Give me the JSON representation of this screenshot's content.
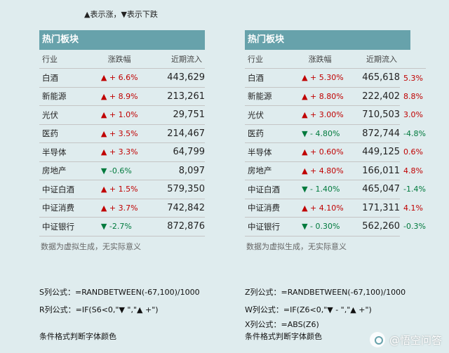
{
  "legend": "▲表示涨，▼表示下跌",
  "left": {
    "title": "热门板块",
    "headers": [
      "行业",
      "涨跌幅",
      "近期流入"
    ],
    "rows": [
      {
        "name": "白酒",
        "dir": "up",
        "arrow": "▲",
        "sign": "+",
        "pct": "6.6%",
        "inflow": "443,629"
      },
      {
        "name": "新能源",
        "dir": "up",
        "arrow": "▲",
        "sign": "+",
        "pct": "8.9%",
        "inflow": "213,261"
      },
      {
        "name": "光伏",
        "dir": "up",
        "arrow": "▲",
        "sign": "+",
        "pct": "1.0%",
        "inflow": "29,751"
      },
      {
        "name": "医药",
        "dir": "up",
        "arrow": "▲",
        "sign": "+",
        "pct": "3.5%",
        "inflow": "214,467"
      },
      {
        "name": "半导体",
        "dir": "up",
        "arrow": "▲",
        "sign": "+",
        "pct": "3.3%",
        "inflow": "64,799"
      },
      {
        "name": "房地产",
        "dir": "down",
        "arrow": "▼",
        "sign": "",
        "pct": "-0.6%",
        "inflow": "8,097"
      },
      {
        "name": "中证白酒",
        "dir": "up",
        "arrow": "▲",
        "sign": "+",
        "pct": "1.5%",
        "inflow": "579,350"
      },
      {
        "name": "中证消费",
        "dir": "up",
        "arrow": "▲",
        "sign": "+",
        "pct": "3.7%",
        "inflow": "742,842"
      },
      {
        "name": "中证银行",
        "dir": "down",
        "arrow": "▼",
        "sign": "",
        "pct": "-2.7%",
        "inflow": "872,876"
      }
    ],
    "note": "数据为虚拟生成，无实际意义"
  },
  "right": {
    "title": "热门板块",
    "headers": [
      "行业",
      "涨跌幅",
      "近期流入"
    ],
    "rows": [
      {
        "name": "白酒",
        "dir": "up",
        "arrow": "▲",
        "sign": "+",
        "pct": "5.30%",
        "inflow": "465,618",
        "raw": "5.3%"
      },
      {
        "name": "新能源",
        "dir": "up",
        "arrow": "▲",
        "sign": "+",
        "pct": "8.80%",
        "inflow": "222,402",
        "raw": "8.8%"
      },
      {
        "name": "光伏",
        "dir": "up",
        "arrow": "▲",
        "sign": "+",
        "pct": "3.00%",
        "inflow": "710,503",
        "raw": "3.0%"
      },
      {
        "name": "医药",
        "dir": "down",
        "arrow": "▼",
        "sign": "-",
        "pct": "4.80%",
        "inflow": "872,744",
        "raw": "-4.8%"
      },
      {
        "name": "半导体",
        "dir": "up",
        "arrow": "▲",
        "sign": "+",
        "pct": "0.60%",
        "inflow": "449,125",
        "raw": "0.6%"
      },
      {
        "name": "房地产",
        "dir": "up",
        "arrow": "▲",
        "sign": "+",
        "pct": "4.80%",
        "inflow": "166,011",
        "raw": "4.8%"
      },
      {
        "name": "中证白酒",
        "dir": "down",
        "arrow": "▼",
        "sign": "-",
        "pct": "1.40%",
        "inflow": "465,047",
        "raw": "-1.4%"
      },
      {
        "name": "中证消费",
        "dir": "up",
        "arrow": "▲",
        "sign": "+",
        "pct": "4.10%",
        "inflow": "171,311",
        "raw": "4.1%"
      },
      {
        "name": "中证银行",
        "dir": "down",
        "arrow": "▼",
        "sign": "-",
        "pct": "0.30%",
        "inflow": "562,260",
        "raw": "-0.3%"
      }
    ],
    "note": "数据为虚拟生成，无实际意义"
  },
  "formulas_left": {
    "s": "S列公式：=RANDBETWEEN(-67,100)/1000",
    "r": "R列公式：=IF(S6<0,\"▼    \",\"▲ +\")",
    "cond": "条件格式判断字体颜色"
  },
  "formulas_right": {
    "z": "Z列公式：=RANDBETWEEN(-67,100)/1000",
    "w": "W列公式：=IF(Z6<0,\"▼ - \",\"▲ +\")",
    "x": "X列公式：=ABS(Z6)",
    "cond": "条件格式判断字体颜色"
  },
  "watermark": "@悟空问答",
  "colors": {
    "up": "#c00000",
    "down": "#007a3d",
    "header": "#67a2ab",
    "background": "#dfecee"
  }
}
